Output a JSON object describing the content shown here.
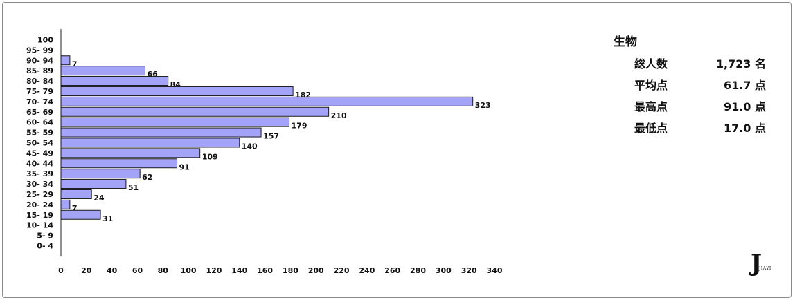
{
  "chart_data": {
    "type": "bar",
    "orientation": "horizontal",
    "categories": [
      "100",
      "95- 99",
      "90- 94",
      "85- 89",
      "80- 84",
      "75- 79",
      "70- 74",
      "65- 69",
      "60- 64",
      "55- 59",
      "50- 54",
      "45- 49",
      "40- 44",
      "35- 39",
      "30- 34",
      "25- 29",
      "20- 24",
      "15- 19",
      "10- 14",
      "5- 9",
      "0- 4"
    ],
    "values": [
      null,
      null,
      7,
      66,
      84,
      182,
      323,
      210,
      179,
      157,
      140,
      109,
      91,
      62,
      51,
      24,
      7,
      31,
      null,
      null,
      null
    ],
    "xlim": [
      0,
      340
    ],
    "xticks": [
      0,
      20,
      40,
      60,
      80,
      100,
      120,
      140,
      160,
      180,
      200,
      220,
      240,
      260,
      280,
      300,
      320,
      340
    ],
    "grid": false,
    "bar_color": "#a3a3f7",
    "bar_edge_color": "#1a1a1a"
  },
  "stats": {
    "subject": "生物",
    "rows": [
      {
        "label": "総人数",
        "value": "1,723 名"
      },
      {
        "label": "平均点",
        "value": "61.7 点"
      },
      {
        "label": "最高点",
        "value": "91.0 点"
      },
      {
        "label": "最低点",
        "value": "17.0 点"
      }
    ]
  },
  "logo": {
    "mark": "J",
    "sub": "JIAYI"
  }
}
